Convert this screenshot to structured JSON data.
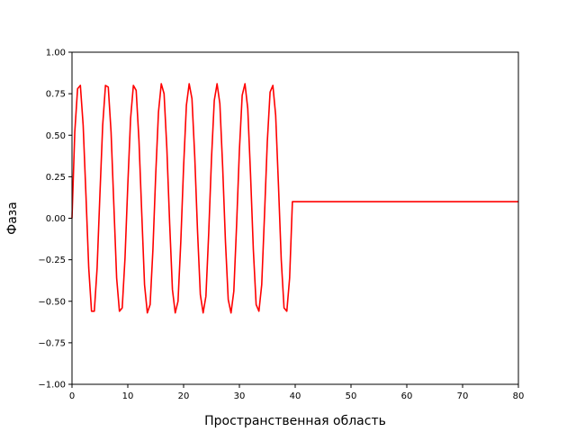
{
  "chart_data": {
    "type": "line",
    "title": "",
    "xlabel": "Пространственная область",
    "ylabel": "Фаза",
    "xlim": [
      0,
      80
    ],
    "ylim": [
      -1.0,
      1.0
    ],
    "grid": false,
    "x_ticks": [
      0,
      10,
      20,
      30,
      40,
      50,
      60,
      70,
      80
    ],
    "x_tick_labels": [
      "0",
      "10",
      "20",
      "30",
      "40",
      "50",
      "60",
      "70",
      "80"
    ],
    "y_ticks": [
      -1.0,
      -0.75,
      -0.5,
      -0.25,
      0.0,
      0.25,
      0.5,
      0.75,
      1.0
    ],
    "y_tick_labels": [
      "−1.00",
      "−0.75",
      "−0.50",
      "−0.25",
      "0.00",
      "0.25",
      "0.50",
      "0.75",
      "1.00"
    ],
    "series": [
      {
        "color": "#ff0000",
        "x": [
          0,
          0.5,
          1,
          1.5,
          2,
          2.5,
          3,
          3.5,
          4,
          4.5,
          5,
          5.5,
          6,
          6.5,
          7,
          7.5,
          8,
          8.5,
          9,
          9.5,
          10,
          10.5,
          11,
          11.5,
          12,
          12.5,
          13,
          13.5,
          14,
          14.5,
          15,
          15.5,
          16,
          16.5,
          17,
          17.5,
          18,
          18.5,
          19,
          19.5,
          20,
          20.5,
          21,
          21.5,
          22,
          22.5,
          23,
          23.5,
          24,
          24.5,
          25,
          25.5,
          26,
          26.5,
          27,
          27.5,
          28,
          28.5,
          29,
          29.5,
          30,
          30.5,
          31,
          31.5,
          32,
          32.5,
          33,
          33.5,
          34,
          34.5,
          35,
          35.5,
          36,
          36.5,
          37,
          37.5,
          38,
          38.5,
          39,
          39.5,
          40,
          40.5,
          80
        ],
        "y": [
          0.0,
          0.52,
          0.78,
          0.8,
          0.56,
          0.14,
          -0.3,
          -0.56,
          -0.56,
          -0.3,
          0.14,
          0.56,
          0.8,
          0.79,
          0.52,
          0.08,
          -0.36,
          -0.56,
          -0.54,
          -0.24,
          0.2,
          0.6,
          0.8,
          0.77,
          0.47,
          0.03,
          -0.4,
          -0.57,
          -0.52,
          -0.19,
          0.26,
          0.64,
          0.81,
          0.75,
          0.42,
          -0.03,
          -0.43,
          -0.57,
          -0.5,
          -0.14,
          0.31,
          0.68,
          0.81,
          0.72,
          0.37,
          -0.08,
          -0.46,
          -0.57,
          -0.47,
          -0.09,
          0.36,
          0.71,
          0.81,
          0.69,
          0.31,
          -0.14,
          -0.49,
          -0.57,
          -0.44,
          -0.04,
          0.41,
          0.74,
          0.81,
          0.66,
          0.26,
          -0.19,
          -0.52,
          -0.56,
          -0.4,
          0.02,
          0.46,
          0.76,
          0.8,
          0.62,
          0.2,
          -0.25,
          -0.54,
          -0.56,
          -0.36,
          0.1,
          0.1,
          0.1,
          0.1
        ]
      }
    ]
  }
}
